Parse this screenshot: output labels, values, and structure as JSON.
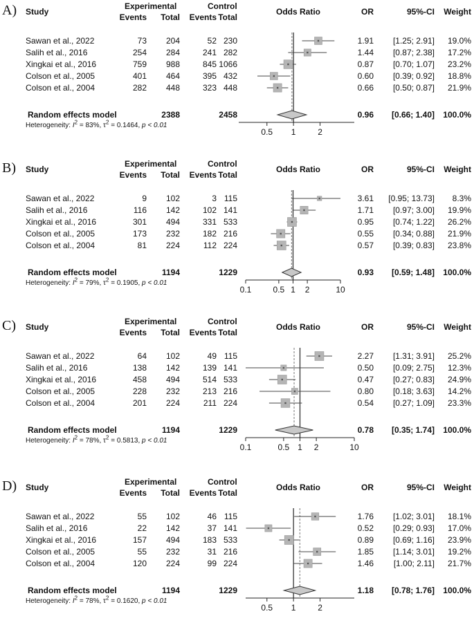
{
  "headers": {
    "study": "Study",
    "experimental": "Experimental",
    "control": "Control",
    "events": "Events",
    "total": "Total",
    "odds_ratio": "Odds Ratio",
    "or": "OR",
    "ci": "95%-CI",
    "weight": "Weight"
  },
  "colors": {
    "box": "#b5b5b5",
    "diamond": "#c8c8c8",
    "line": "#444444"
  },
  "chart_data": [
    {
      "type": "forest",
      "label": "A)",
      "xscale": "log",
      "ticks": [
        "0.5",
        "1",
        "2"
      ],
      "tick_values": [
        0.5,
        1,
        2
      ],
      "xlim": [
        0.35,
        3
      ],
      "studies": [
        {
          "name": "Sawan et al., 2022",
          "e_events": "73",
          "e_total": "204",
          "c_events": "52",
          "c_total": "230",
          "or": 1.91,
          "lo": 1.25,
          "hi": 2.91,
          "or_text": "1.91",
          "ci_text": "[1.25; 2.91]",
          "weight_text": "19.0%"
        },
        {
          "name": "Salih et al., 2016",
          "e_events": "254",
          "e_total": "284",
          "c_events": "241",
          "c_total": "282",
          "or": 1.44,
          "lo": 0.87,
          "hi": 2.38,
          "or_text": "1.44",
          "ci_text": "[0.87; 2.38]",
          "weight_text": "17.2%"
        },
        {
          "name": "Xingkai et al., 2016",
          "e_events": "759",
          "e_total": "988",
          "c_events": "845",
          "c_total": "1066",
          "or": 0.87,
          "lo": 0.7,
          "hi": 1.07,
          "or_text": "0.87",
          "ci_text": "[0.70; 1.07]",
          "weight_text": "23.2%"
        },
        {
          "name": "Colson  et al., 2005",
          "e_events": "401",
          "e_total": "464",
          "c_events": "395",
          "c_total": "432",
          "or": 0.6,
          "lo": 0.39,
          "hi": 0.92,
          "or_text": "0.60",
          "ci_text": "[0.39; 0.92]",
          "weight_text": "18.8%"
        },
        {
          "name": "Colson  et al., 2004",
          "e_events": "282",
          "e_total": "448",
          "c_events": "323",
          "c_total": "448",
          "or": 0.66,
          "lo": 0.5,
          "hi": 0.87,
          "or_text": "0.66",
          "ci_text": "[0.50; 0.87]",
          "weight_text": "21.9%"
        }
      ],
      "summary": {
        "label": "Random effects model",
        "e_total": "2388",
        "c_total": "2458",
        "or": 0.96,
        "lo": 0.66,
        "hi": 1.4,
        "or_text": "0.96",
        "ci_text": "[0.66; 1.40]",
        "weight_text": "100.0%"
      },
      "heterogeneity": {
        "i2": "83%",
        "tau2": "0.1464",
        "p": "p < 0.01"
      }
    },
    {
      "type": "forest",
      "label": "B)",
      "xscale": "log",
      "ticks": [
        "0.1",
        "0.5",
        "1",
        "2",
        "10"
      ],
      "tick_values": [
        0.1,
        0.5,
        1,
        2,
        10
      ],
      "xlim": [
        0.1,
        10
      ],
      "studies": [
        {
          "name": "Sawan et al., 2022",
          "e_events": "9",
          "e_total": "102",
          "c_events": "3",
          "c_total": "115",
          "or": 3.61,
          "lo": 0.95,
          "hi": 13.73,
          "or_text": "3.61",
          "ci_text": "[0.95; 13.73]",
          "weight_text": "8.3%"
        },
        {
          "name": "Salih et al., 2016",
          "e_events": "116",
          "e_total": "142",
          "c_events": "102",
          "c_total": "141",
          "or": 1.71,
          "lo": 0.97,
          "hi": 3.0,
          "or_text": "1.71",
          "ci_text": "[0.97; 3.00]",
          "weight_text": "19.9%"
        },
        {
          "name": "Xingkai et al., 2016",
          "e_events": "301",
          "e_total": "494",
          "c_events": "331",
          "c_total": "533",
          "or": 0.95,
          "lo": 0.74,
          "hi": 1.22,
          "or_text": "0.95",
          "ci_text": "[0.74; 1.22]",
          "weight_text": "26.2%"
        },
        {
          "name": "Colson  et al., 2005",
          "e_events": "173",
          "e_total": "232",
          "c_events": "182",
          "c_total": "216",
          "or": 0.55,
          "lo": 0.34,
          "hi": 0.88,
          "or_text": "0.55",
          "ci_text": "[0.34; 0.88]",
          "weight_text": "21.9%"
        },
        {
          "name": "Colson  et al., 2004",
          "e_events": "81",
          "e_total": "224",
          "c_events": "112",
          "c_total": "224",
          "or": 0.57,
          "lo": 0.39,
          "hi": 0.83,
          "or_text": "0.57",
          "ci_text": "[0.39; 0.83]",
          "weight_text": "23.8%"
        }
      ],
      "summary": {
        "label": "Random effects model",
        "e_total": "1194",
        "c_total": "1229",
        "or": 0.93,
        "lo": 0.59,
        "hi": 1.48,
        "or_text": "0.93",
        "ci_text": "[0.59;  1.48]",
        "weight_text": "100.0%"
      },
      "heterogeneity": {
        "i2": "79%",
        "tau2": "0.1905",
        "p": "p < 0.01"
      }
    },
    {
      "type": "forest",
      "label": "C)",
      "xscale": "log",
      "ticks": [
        "0.1",
        "0.5",
        "1",
        "2",
        "10"
      ],
      "tick_values": [
        0.1,
        0.5,
        1,
        2,
        10
      ],
      "xlim": [
        0.1,
        10
      ],
      "studies": [
        {
          "name": "Sawan et al., 2022",
          "e_events": "64",
          "e_total": "102",
          "c_events": "49",
          "c_total": "115",
          "or": 2.27,
          "lo": 1.31,
          "hi": 3.91,
          "or_text": "2.27",
          "ci_text": "[1.31; 3.91]",
          "weight_text": "25.2%"
        },
        {
          "name": "Salih et al., 2016",
          "e_events": "138",
          "e_total": "142",
          "c_events": "139",
          "c_total": "141",
          "or": 0.5,
          "lo": 0.09,
          "hi": 2.75,
          "or_text": "0.50",
          "ci_text": "[0.09; 2.75]",
          "weight_text": "12.3%"
        },
        {
          "name": "Xingkai et al., 2016",
          "e_events": "458",
          "e_total": "494",
          "c_events": "514",
          "c_total": "533",
          "or": 0.47,
          "lo": 0.27,
          "hi": 0.83,
          "or_text": "0.47",
          "ci_text": "[0.27; 0.83]",
          "weight_text": "24.9%"
        },
        {
          "name": "Colson  et al., 2005",
          "e_events": "228",
          "e_total": "232",
          "c_events": "213",
          "c_total": "216",
          "or": 0.8,
          "lo": 0.18,
          "hi": 3.63,
          "or_text": "0.80",
          "ci_text": "[0.18; 3.63]",
          "weight_text": "14.2%"
        },
        {
          "name": "Colson  et al., 2004",
          "e_events": "201",
          "e_total": "224",
          "c_events": "211",
          "c_total": "224",
          "or": 0.54,
          "lo": 0.27,
          "hi": 1.09,
          "or_text": "0.54",
          "ci_text": "[0.27; 1.09]",
          "weight_text": "23.3%"
        }
      ],
      "summary": {
        "label": "Random effects model",
        "e_total": "1194",
        "c_total": "1229",
        "or": 0.78,
        "lo": 0.35,
        "hi": 1.74,
        "or_text": "0.78",
        "ci_text": "[0.35;  1.74]",
        "weight_text": "100.0%"
      },
      "heterogeneity": {
        "i2": "78%",
        "tau2": "0.5813",
        "p": "p < 0.01"
      }
    },
    {
      "type": "forest",
      "label": "D)",
      "xscale": "log",
      "ticks": [
        "0.5",
        "1",
        "2"
      ],
      "tick_values": [
        0.5,
        1,
        2
      ],
      "xlim": [
        0.35,
        3
      ],
      "studies": [
        {
          "name": "Sawan et al., 2022",
          "e_events": "55",
          "e_total": "102",
          "c_events": "46",
          "c_total": "115",
          "or": 1.76,
          "lo": 1.02,
          "hi": 3.01,
          "or_text": "1.76",
          "ci_text": "[1.02; 3.01]",
          "weight_text": "18.1%"
        },
        {
          "name": "Salih et al., 2016",
          "e_events": "22",
          "e_total": "142",
          "c_events": "37",
          "c_total": "141",
          "or": 0.52,
          "lo": 0.29,
          "hi": 0.93,
          "or_text": "0.52",
          "ci_text": "[0.29; 0.93]",
          "weight_text": "17.0%"
        },
        {
          "name": "Xingkai et al., 2016",
          "e_events": "157",
          "e_total": "494",
          "c_events": "183",
          "c_total": "533",
          "or": 0.89,
          "lo": 0.69,
          "hi": 1.16,
          "or_text": "0.89",
          "ci_text": "[0.69; 1.16]",
          "weight_text": "23.9%"
        },
        {
          "name": "Colson  et al., 2005",
          "e_events": "55",
          "e_total": "232",
          "c_events": "31",
          "c_total": "216",
          "or": 1.85,
          "lo": 1.14,
          "hi": 3.01,
          "or_text": "1.85",
          "ci_text": "[1.14; 3.01]",
          "weight_text": "19.2%"
        },
        {
          "name": "Colson  et al., 2004",
          "e_events": "120",
          "e_total": "224",
          "c_events": "99",
          "c_total": "224",
          "or": 1.46,
          "lo": 1.0,
          "hi": 2.11,
          "or_text": "1.46",
          "ci_text": "[1.00; 2.11]",
          "weight_text": "21.7%"
        }
      ],
      "summary": {
        "label": "Random effects model",
        "e_total": "1194",
        "c_total": "1229",
        "or": 1.18,
        "lo": 0.78,
        "hi": 1.76,
        "or_text": "1.18",
        "ci_text": "[0.78; 1.76]",
        "weight_text": "100.0%"
      },
      "heterogeneity": {
        "i2": "78%",
        "tau2": "0.1620",
        "p": "p < 0.01"
      }
    }
  ]
}
